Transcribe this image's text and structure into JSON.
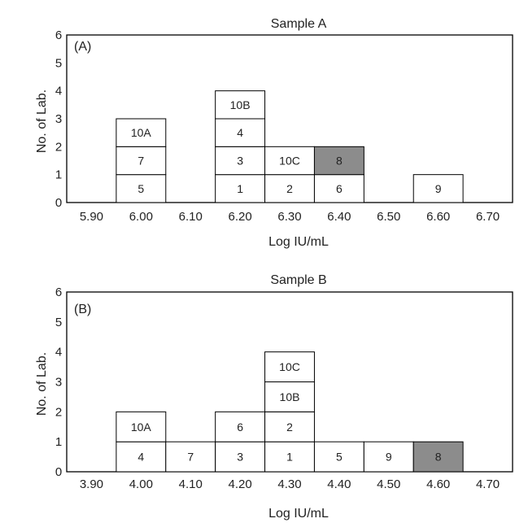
{
  "chart_data": [
    {
      "type": "bar",
      "subtype": "stacked-labeled-histogram",
      "title": "Sample A",
      "panel_label": "(A)",
      "xlabel": "Log IU/mL",
      "ylabel": "No. of  Lab.",
      "ylim": [
        0,
        6
      ],
      "yticks": [
        "0",
        "1",
        "2",
        "3",
        "4",
        "5",
        "6"
      ],
      "xlim": [
        5.85,
        6.75
      ],
      "xticks": [
        "5.90",
        "6.00",
        "6.10",
        "6.20",
        "6.30",
        "6.40",
        "6.50",
        "6.60",
        "6.70"
      ],
      "bin_width": 0.1,
      "highlight_color": "#8c8c8c",
      "grid": false,
      "bins": [
        {
          "x": 6.0,
          "labs": [
            "5",
            "7",
            "10A"
          ]
        },
        {
          "x": 6.2,
          "labs": [
            "1",
            "3",
            "4",
            "10B"
          ]
        },
        {
          "x": 6.3,
          "labs": [
            "2",
            "10C"
          ]
        },
        {
          "x": 6.4,
          "labs": [
            "6",
            "8"
          ],
          "highlight": [
            1
          ]
        },
        {
          "x": 6.6,
          "labs": [
            "9"
          ]
        }
      ]
    },
    {
      "type": "bar",
      "subtype": "stacked-labeled-histogram",
      "title": "Sample B",
      "panel_label": "(B)",
      "xlabel": "Log IU/mL",
      "ylabel": "No. of  Lab.",
      "ylim": [
        0,
        6
      ],
      "yticks": [
        "0",
        "1",
        "2",
        "3",
        "4",
        "5",
        "6"
      ],
      "xlim": [
        3.85,
        4.75
      ],
      "xticks": [
        "3.90",
        "4.00",
        "4.10",
        "4.20",
        "4.30",
        "4.40",
        "4.50",
        "4.60",
        "4.70"
      ],
      "bin_width": 0.1,
      "highlight_color": "#8c8c8c",
      "grid": false,
      "bins": [
        {
          "x": 4.0,
          "labs": [
            "4",
            "10A"
          ]
        },
        {
          "x": 4.1,
          "labs": [
            "7"
          ]
        },
        {
          "x": 4.2,
          "labs": [
            "3",
            "6"
          ]
        },
        {
          "x": 4.3,
          "labs": [
            "1",
            "2",
            "10B",
            "10C"
          ]
        },
        {
          "x": 4.4,
          "labs": [
            "5"
          ]
        },
        {
          "x": 4.5,
          "labs": [
            "9"
          ]
        },
        {
          "x": 4.6,
          "labs": [
            "8"
          ],
          "highlight": [
            0
          ]
        }
      ]
    }
  ]
}
